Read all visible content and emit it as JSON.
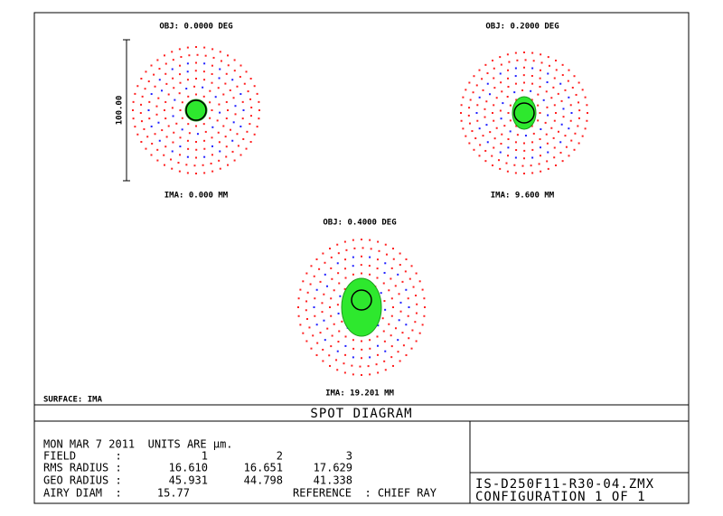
{
  "spots": [
    {
      "obj": "OBJ: 0.0000 DEG",
      "ima": "IMA: 0.000 MM"
    },
    {
      "obj": "OBJ: 0.2000 DEG",
      "ima": "IMA: 9.600 MM"
    },
    {
      "obj": "OBJ: 0.4000 DEG",
      "ima": "IMA: 19.201 MM"
    }
  ],
  "scale_label": "100.00",
  "surface": "SURFACE: IMA",
  "title": "SPOT DIAGRAM",
  "info": {
    "date_units": "MON MAR 7 2011  UNITS ARE µm.",
    "field_label": "FIELD      :",
    "fields": [
      "1",
      "2",
      "3"
    ],
    "rms_label": "RMS RADIUS :",
    "rms": [
      "16.610",
      "16.651",
      "17.629"
    ],
    "geo_label": "GEO RADIUS :",
    "geo": [
      "45.931",
      "44.798",
      "41.338"
    ],
    "airy_label": "AIRY DIAM  :",
    "airy": "15.77",
    "reference": "REFERENCE  : CHIEF RAY"
  },
  "file": "IS-D250F11-R30-04.ZMX",
  "configuration": "CONFIGURATION 1 OF 1"
}
